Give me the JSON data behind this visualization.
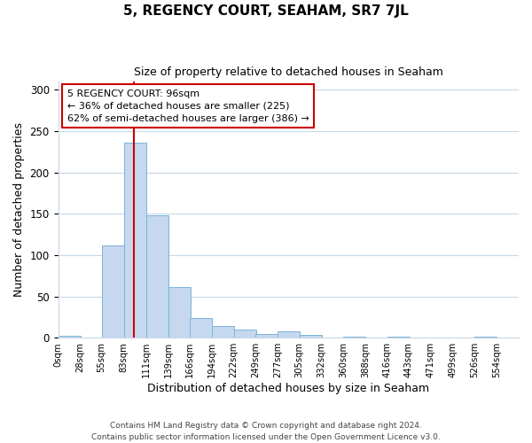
{
  "title": "5, REGENCY COURT, SEAHAM, SR7 7JL",
  "subtitle": "Size of property relative to detached houses in Seaham",
  "xlabel": "Distribution of detached houses by size in Seaham",
  "ylabel": "Number of detached properties",
  "bin_labels": [
    "0sqm",
    "28sqm",
    "55sqm",
    "83sqm",
    "111sqm",
    "139sqm",
    "166sqm",
    "194sqm",
    "222sqm",
    "249sqm",
    "277sqm",
    "305sqm",
    "332sqm",
    "360sqm",
    "388sqm",
    "416sqm",
    "443sqm",
    "471sqm",
    "499sqm",
    "526sqm",
    "554sqm"
  ],
  "bar_values": [
    2,
    0,
    112,
    236,
    148,
    61,
    24,
    14,
    10,
    5,
    8,
    3,
    0,
    1,
    0,
    1,
    0,
    0,
    0,
    1
  ],
  "bar_color": "#c5d8f0",
  "bar_edge_color": "#7ab3d8",
  "vline_x": 96,
  "bin_edges": [
    0,
    28,
    55,
    83,
    111,
    139,
    166,
    194,
    222,
    249,
    277,
    305,
    332,
    360,
    388,
    416,
    443,
    471,
    499,
    526,
    554
  ],
  "bin_width": 27,
  "vline_color": "#cc0000",
  "annotation_line1": "5 REGENCY COURT: 96sqm",
  "annotation_line2": "← 36% of detached houses are smaller (225)",
  "annotation_line3": "62% of semi-detached houses are larger (386) →",
  "annotation_box_color": "#ffffff",
  "annotation_box_edge": "#cc0000",
  "ylim": [
    0,
    310
  ],
  "yticks": [
    0,
    50,
    100,
    150,
    200,
    250,
    300
  ],
  "footer_line1": "Contains HM Land Registry data © Crown copyright and database right 2024.",
  "footer_line2": "Contains public sector information licensed under the Open Government Licence v3.0.",
  "background_color": "#ffffff",
  "grid_color": "#c8d8e8"
}
